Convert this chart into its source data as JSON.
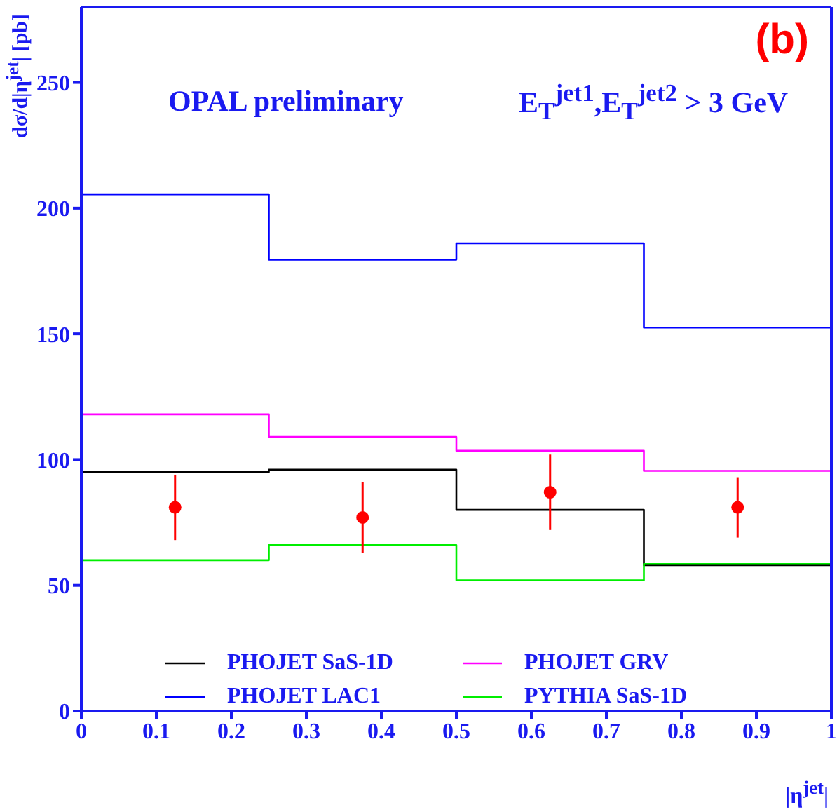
{
  "chart_data": {
    "type": "step",
    "xlabel": "|η$^{jet}$|",
    "ylabel": "dσ/d|η$^{jet}$| [pb]",
    "annotations": [
      "(b)",
      "OPAL preliminary",
      "E$_{T}$$^{jet1}$,E$_{T}$$^{jet2}$ > 3 GeV"
    ],
    "x": [
      0,
      0.25,
      0.5,
      0.75,
      1
    ],
    "series": [
      {
        "name": "PHOJET SaS-1D",
        "color": "#000000",
        "values": [
          95,
          96,
          80,
          58,
          58
        ]
      },
      {
        "name": "PHOJET LAC1",
        "color": "#0000ff",
        "values": [
          205.5,
          179.5,
          186,
          152.5,
          152.5
        ]
      },
      {
        "name": "PHOJET GRV",
        "color": "#ff00ff",
        "values": [
          118,
          109,
          103.5,
          95.5,
          95.5
        ]
      },
      {
        "name": "PYTHIA SaS-1D",
        "color": "#00ee00",
        "values": [
          60,
          66,
          52,
          58.5,
          58.5
        ]
      },
      {
        "type": "scatter",
        "color": "#ff0000",
        "marker": "circle",
        "x": [
          0.125,
          0.375,
          0.625,
          0.875
        ],
        "values": [
          81,
          77,
          87,
          81
        ],
        "errors": [
          [
            68,
            94
          ],
          [
            63,
            91
          ],
          [
            72,
            102
          ],
          [
            69,
            93
          ]
        ]
      }
    ],
    "xlim": [
      0,
      1
    ],
    "xticks": [
      0,
      0.1,
      0.2,
      0.3,
      0.4,
      0.5,
      0.6,
      0.7,
      0.8,
      0.9,
      1
    ],
    "ylim": [
      0,
      280
    ],
    "yticks": [
      0,
      50,
      100,
      150,
      200,
      250
    ],
    "grid": false,
    "legend": "bottom",
    "line_style": "solid"
  }
}
